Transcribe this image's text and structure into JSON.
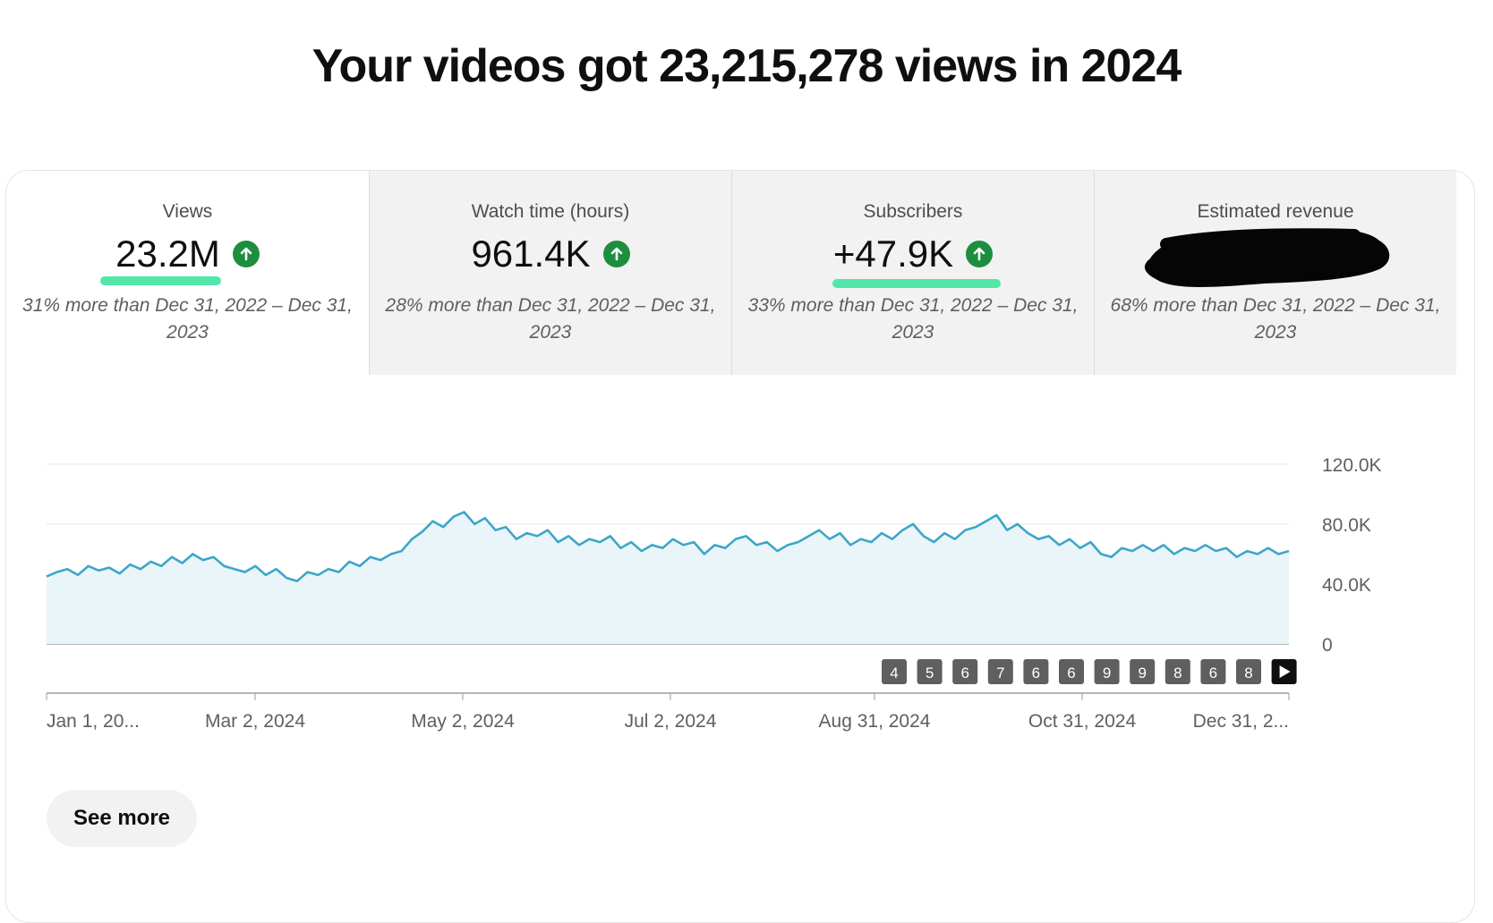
{
  "headline": "Your videos got 23,215,278 views in 2024",
  "metrics": [
    {
      "label": "Views",
      "value": "23.2M",
      "comparison": "31% more than Dec 31, 2022 – Dec 31, 2023",
      "active": true
    },
    {
      "label": "Watch time (hours)",
      "value": "961.4K",
      "comparison": "28% more than Dec 31, 2022 – Dec 31, 2023",
      "active": false
    },
    {
      "label": "Subscribers",
      "value": "+47.9K",
      "comparison": "33% more than Dec 31, 2022 – Dec 31, 2023",
      "active": false
    },
    {
      "label": "Estimated revenue",
      "value": "",
      "comparison": "68% more than Dec 31, 2022 – Dec 31, 2023",
      "active": false
    }
  ],
  "colors": {
    "line": "#3ea6c8",
    "fill": "#eaf5f9",
    "up": "#1e8e3e",
    "highlight": "#49e6a4",
    "grid": "#e5e5e5"
  },
  "icons": {
    "trend": "arrow-up-icon",
    "next": "play-next-icon"
  },
  "chart_data": {
    "type": "area",
    "x_range": [
      "2024-01-01",
      "2024-12-31"
    ],
    "xticks": [
      "Jan 1, 20...",
      "Mar 2, 2024",
      "May 2, 2024",
      "Jul 2, 2024",
      "Aug 31, 2024",
      "Oct 31, 2024",
      "Dec 31, 2..."
    ],
    "yticks": [
      "120.0K",
      "80.0K",
      "40.0K",
      "0"
    ],
    "ylim": [
      0,
      120000
    ],
    "grid": true,
    "series": [
      {
        "values": [
          45000,
          48000,
          50000,
          46000,
          52000,
          49000,
          51000,
          47000,
          53000,
          50000,
          55000,
          52000,
          58000,
          54000,
          60000,
          56000,
          58000,
          52000,
          50000,
          48000,
          52000,
          46000,
          50000,
          44000,
          42000,
          48000,
          46000,
          50000,
          48000,
          55000,
          52000,
          58000,
          56000,
          60000,
          62000,
          70000,
          75000,
          82000,
          78000,
          85000,
          88000,
          80000,
          84000,
          76000,
          78000,
          70000,
          74000,
          72000,
          76000,
          68000,
          72000,
          66000,
          70000,
          68000,
          72000,
          64000,
          68000,
          62000,
          66000,
          64000,
          70000,
          66000,
          68000,
          60000,
          66000,
          64000,
          70000,
          72000,
          66000,
          68000,
          62000,
          66000,
          68000,
          72000,
          76000,
          70000,
          74000,
          66000,
          70000,
          68000,
          74000,
          70000,
          76000,
          80000,
          72000,
          68000,
          74000,
          70000,
          76000,
          78000,
          82000,
          86000,
          76000,
          80000,
          74000,
          70000,
          72000,
          66000,
          70000,
          64000,
          68000,
          60000,
          58000,
          64000,
          62000,
          66000,
          62000,
          66000,
          60000,
          64000,
          62000,
          66000,
          62000,
          64000,
          58000,
          62000,
          60000,
          64000,
          60000,
          62000
        ]
      }
    ],
    "milestones": [
      "4",
      "5",
      "6",
      "7",
      "6",
      "6",
      "9",
      "9",
      "8",
      "6",
      "8"
    ]
  },
  "see_more": "See more"
}
